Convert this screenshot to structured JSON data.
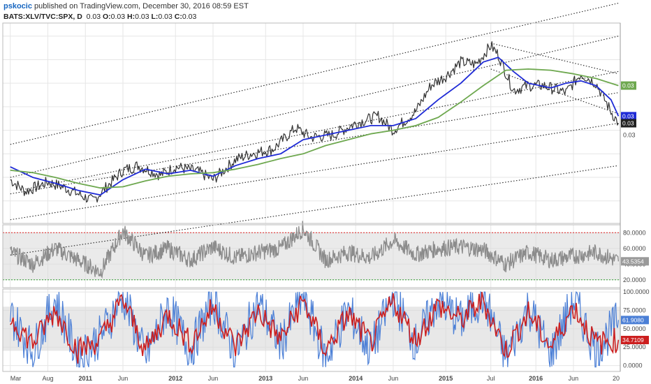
{
  "header": {
    "author": "pskocic",
    "published": " published on TradingView.com, December 30, 2016 08:59 EST",
    "symbol": "BATS:XLV/TVC:SPX, D",
    "o_label": "O:",
    "o_value": "0.03",
    "h_label": "H:",
    "h_value": "0.03",
    "l_label": "L:",
    "l_value": "0.03",
    "c_label": "C:",
    "c_value": "0.03",
    "last_value": "0.03"
  },
  "colors": {
    "price": "#333333",
    "ma_fast": "#1f2bd6",
    "ma_slow": "#6ea84f",
    "rsi": "#8c8c8c",
    "stoch_k": "#4b7fd6",
    "stoch_d": "#cc1f1f",
    "channel": "#222222",
    "upper_band": "#e02020",
    "lower_band": "#2e9e2e",
    "grid": "#e6e6e6",
    "band_fill": "#d8d8d8"
  },
  "chart_data": [
    {
      "type": "line",
      "panel": "price",
      "series": [
        {
          "name": "",
          "role": "price",
          "x": [
            "2010-03",
            "2010-05",
            "2010-08",
            "2010-10",
            "2011-02",
            "2011-06",
            "2011-08",
            "2011-11",
            "2012-01",
            "2012-04",
            "2012-06",
            "2012-09",
            "2012-11",
            "2013-02",
            "2013-05",
            "2013-07",
            "2013-10",
            "2014-01",
            "2014-04",
            "2014-06",
            "2014-09",
            "2014-11",
            "2015-01",
            "2015-03",
            "2015-05",
            "2015-07",
            "2015-08",
            "2015-10",
            "2015-12",
            "2016-02",
            "2016-05",
            "2016-07",
            "2016-09",
            "2016-11",
            "2016-12"
          ],
          "y": [
            0.9,
            0.4,
            0.8,
            0.6,
            0.0,
            1.3,
            1.5,
            1.1,
            1.45,
            1.25,
            0.9,
            1.75,
            2.0,
            2.2,
            3.1,
            2.7,
            2.8,
            3.3,
            3.6,
            3.0,
            3.8,
            4.9,
            5.3,
            5.9,
            5.8,
            6.6,
            6.2,
            4.7,
            4.9,
            4.9,
            4.6,
            5.4,
            5.0,
            3.8,
            3.3
          ]
        },
        {
          "name": "",
          "role": "ma_fast",
          "x": [
            "2010-03",
            "2010-06",
            "2010-09",
            "2010-12",
            "2011-03",
            "2011-06",
            "2011-09",
            "2011-12",
            "2012-03",
            "2012-06",
            "2012-09",
            "2012-12",
            "2013-03",
            "2013-06",
            "2013-09",
            "2013-12",
            "2014-03",
            "2014-06",
            "2014-09",
            "2014-12",
            "2015-03",
            "2015-06",
            "2015-08",
            "2015-10",
            "2015-12",
            "2016-03",
            "2016-05",
            "2016-07",
            "2016-09",
            "2016-11",
            "2016-12"
          ],
          "y": [
            1.45,
            1.0,
            0.75,
            0.45,
            0.25,
            0.9,
            1.35,
            1.15,
            1.3,
            1.05,
            1.5,
            1.8,
            2.0,
            2.6,
            2.8,
            3.0,
            3.2,
            3.2,
            3.5,
            4.3,
            5.0,
            5.9,
            6.1,
            5.5,
            5.0,
            4.8,
            5.0,
            5.1,
            4.9,
            4.3,
            3.6
          ]
        },
        {
          "name": "",
          "role": "ma_slow",
          "x": [
            "2010-03",
            "2010-06",
            "2010-09",
            "2010-12",
            "2011-03",
            "2011-06",
            "2011-09",
            "2011-12",
            "2012-03",
            "2012-06",
            "2012-09",
            "2012-12",
            "2013-03",
            "2013-06",
            "2013-09",
            "2013-12",
            "2014-03",
            "2014-06",
            "2014-09",
            "2014-12",
            "2015-03",
            "2015-06",
            "2015-09",
            "2015-12",
            "2016-03",
            "2016-06",
            "2016-09",
            "2016-12"
          ],
          "y": [
            1.3,
            1.2,
            1.0,
            0.75,
            0.55,
            0.6,
            0.85,
            1.05,
            1.15,
            1.2,
            1.35,
            1.55,
            1.8,
            2.0,
            2.35,
            2.6,
            2.85,
            3.0,
            3.2,
            3.55,
            4.2,
            4.9,
            5.55,
            5.6,
            5.55,
            5.4,
            5.2,
            4.9
          ]
        }
      ],
      "channels": [
        {
          "x": [
            "2010-03",
            "2016-12"
          ],
          "y": [
            2.4,
            8.4
          ]
        },
        {
          "x": [
            "2010-03",
            "2016-12"
          ],
          "y": [
            1.0,
            7.0
          ]
        },
        {
          "x": [
            "2010-03",
            "2016-12"
          ],
          "y": [
            0.3,
            4.6
          ]
        },
        {
          "x": [
            "2010-03",
            "2016-12"
          ],
          "y": [
            -0.8,
            3.3
          ]
        },
        {
          "x": [
            "2010-03",
            "2016-12"
          ],
          "y": [
            -2.3,
            1.5
          ]
        },
        {
          "x": [
            "2015-07",
            "2016-12"
          ],
          "y": [
            6.7,
            5.4
          ]
        },
        {
          "x": [
            "2015-07",
            "2016-12"
          ],
          "y": [
            5.6,
            3.7
          ]
        },
        {
          "x": [
            "2010-05",
            "2016-12"
          ],
          "y": [
            0.5,
            5.5
          ]
        }
      ],
      "last_values": [
        {
          "label": "0.03",
          "series": "ma_slow"
        },
        {
          "label": "0.03",
          "series": "ma_fast"
        },
        {
          "label": "0.03",
          "series": "price"
        },
        {
          "label": "0.03",
          "series": "axis"
        }
      ]
    },
    {
      "type": "line",
      "panel": "rsi",
      "ylim": [
        10,
        90
      ],
      "yticks": [
        "80.0000",
        "60.0000",
        "40.0000",
        "20.0000"
      ],
      "yticks_values": [
        80,
        60,
        40,
        20
      ],
      "upper_band": 80,
      "lower_band": 20,
      "last_value": 43.5354,
      "last_label": "43.5354",
      "series": [
        {
          "name": "",
          "x": [
            "2010-03",
            "2010-06",
            "2010-09",
            "2010-12",
            "2011-03",
            "2011-06",
            "2011-09",
            "2011-12",
            "2012-03",
            "2012-06",
            "2012-09",
            "2012-12",
            "2013-03",
            "2013-06",
            "2013-09",
            "2013-12",
            "2014-03",
            "2014-06",
            "2014-09",
            "2014-12",
            "2015-03",
            "2015-06",
            "2015-09",
            "2015-12",
            "2016-03",
            "2016-06",
            "2016-09",
            "2016-12"
          ],
          "y": [
            55,
            40,
            60,
            45,
            30,
            82,
            50,
            60,
            45,
            62,
            48,
            55,
            60,
            85,
            45,
            55,
            48,
            70,
            52,
            60,
            62,
            58,
            40,
            55,
            45,
            50,
            55,
            43.5
          ]
        }
      ]
    },
    {
      "type": "line",
      "panel": "stochastic",
      "ylim": [
        -8,
        104
      ],
      "yticks": [
        "100.0000",
        "75.0000",
        "50.0000",
        "25.0000",
        "0.0000"
      ],
      "yticks_values": [
        100,
        75,
        50,
        25,
        0
      ],
      "upper_band": 80,
      "lower_band": 20,
      "last_values": [
        {
          "series": "k",
          "value": 61.908,
          "label": "61.9080"
        },
        {
          "series": "d",
          "value": 34.7109,
          "label": "34.7109"
        }
      ],
      "series": [
        {
          "name": "",
          "role": "k",
          "x": [
            "2010-03",
            "2010-06",
            "2010-09",
            "2010-12",
            "2011-03",
            "2011-06",
            "2011-09",
            "2011-12",
            "2012-03",
            "2012-06",
            "2012-09",
            "2012-12",
            "2013-03",
            "2013-06",
            "2013-09",
            "2013-12",
            "2014-03",
            "2014-06",
            "2014-09",
            "2014-12",
            "2015-03",
            "2015-06",
            "2015-09",
            "2015-12",
            "2016-03",
            "2016-06",
            "2016-09",
            "2016-12"
          ],
          "y": [
            70,
            20,
            90,
            10,
            40,
            95,
            10,
            80,
            20,
            90,
            15,
            85,
            30,
            95,
            10,
            75,
            20,
            95,
            30,
            90,
            60,
            95,
            10,
            80,
            15,
            90,
            20,
            62
          ]
        },
        {
          "name": "",
          "role": "d",
          "x": [
            "2010-03",
            "2010-06",
            "2010-09",
            "2010-12",
            "2011-03",
            "2011-06",
            "2011-09",
            "2011-12",
            "2012-03",
            "2012-06",
            "2012-09",
            "2012-12",
            "2013-03",
            "2013-06",
            "2013-09",
            "2013-12",
            "2014-03",
            "2014-06",
            "2014-09",
            "2014-12",
            "2015-03",
            "2015-06",
            "2015-09",
            "2015-12",
            "2016-03",
            "2016-06",
            "2016-09",
            "2016-12"
          ],
          "y": [
            65,
            30,
            75,
            20,
            35,
            90,
            20,
            70,
            30,
            80,
            25,
            75,
            35,
            88,
            20,
            70,
            30,
            88,
            35,
            82,
            62,
            88,
            20,
            72,
            25,
            80,
            30,
            35
          ]
        }
      ]
    }
  ],
  "x_axis": {
    "labels": [
      {
        "text": "Mar",
        "date": "2010-03"
      },
      {
        "text": "Aug",
        "date": "2010-08"
      },
      {
        "text": "2011",
        "date": "2011-01"
      },
      {
        "text": "Jun",
        "date": "2011-06"
      },
      {
        "text": "2012",
        "date": "2012-01"
      },
      {
        "text": "Jun",
        "date": "2012-06"
      },
      {
        "text": "2013",
        "date": "2013-01"
      },
      {
        "text": "Jun",
        "date": "2013-06"
      },
      {
        "text": "2014",
        "date": "2014-01"
      },
      {
        "text": "Jun",
        "date": "2014-06"
      },
      {
        "text": "2015",
        "date": "2015-01"
      },
      {
        "text": "Jul",
        "date": "2015-07"
      },
      {
        "text": "2016",
        "date": "2016-01"
      },
      {
        "text": "Jun",
        "date": "2016-06"
      },
      {
        "text": "20",
        "date": "2017-01"
      }
    ]
  }
}
